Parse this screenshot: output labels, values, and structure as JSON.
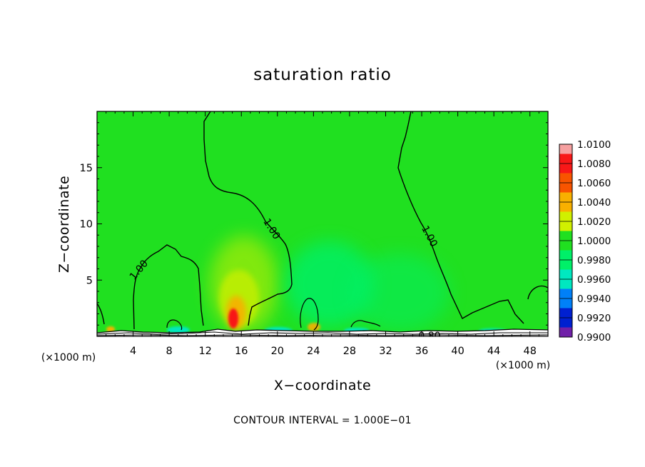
{
  "chart_data": {
    "type": "heatmap",
    "title": "saturation ratio",
    "xlabel": "X−coordinate",
    "ylabel": "Z−coordinate",
    "x_unit_left": "(×1000 m)",
    "x_unit_right": "(×1000 m)",
    "xlim": [
      0,
      50
    ],
    "ylim": [
      0,
      20
    ],
    "x_ticks": [
      4,
      8,
      12,
      16,
      20,
      24,
      28,
      32,
      36,
      40,
      44,
      48
    ],
    "y_ticks": [
      5,
      10,
      15
    ],
    "x_tick_labels": [
      "4",
      "8",
      "12",
      "16",
      "20",
      "24",
      "28",
      "32",
      "36",
      "40",
      "44",
      "48"
    ],
    "y_tick_labels": [
      "5",
      "10",
      "15"
    ],
    "field_background_value": 1.0,
    "colorbar": {
      "levels": [
        1.01,
        1.008,
        1.006,
        1.004,
        1.002,
        1.0,
        0.998,
        0.996,
        0.994,
        0.992,
        0.99
      ],
      "labels": [
        "1.0100",
        "1.0080",
        "1.0060",
        "1.0040",
        "1.0020",
        "1.0000",
        "0.9980",
        "0.9960",
        "0.9940",
        "0.9920",
        "0.9900"
      ],
      "colors": [
        "#f6a0a0",
        "#f81818",
        "#f85400",
        "#f8b000",
        "#d0f000",
        "#20e020",
        "#00f068",
        "#00e8c0",
        "#0080f8",
        "#0020d0",
        "#7020a8"
      ]
    },
    "contour_labels": [
      "1.00",
      "1.00",
      "1.00",
      "0.80"
    ],
    "anomalies": [
      {
        "x": 15.2,
        "z": 1.8,
        "value": 1.0068
      },
      {
        "x": 24.0,
        "z": 0.7,
        "value": 1.0036
      },
      {
        "x": 22.5,
        "z": 5.0,
        "value": 0.9985
      },
      {
        "x": 1.5,
        "z": 0.5,
        "value": 1.003
      }
    ],
    "footer": "CONTOUR INTERVAL = 1.000E−01"
  }
}
